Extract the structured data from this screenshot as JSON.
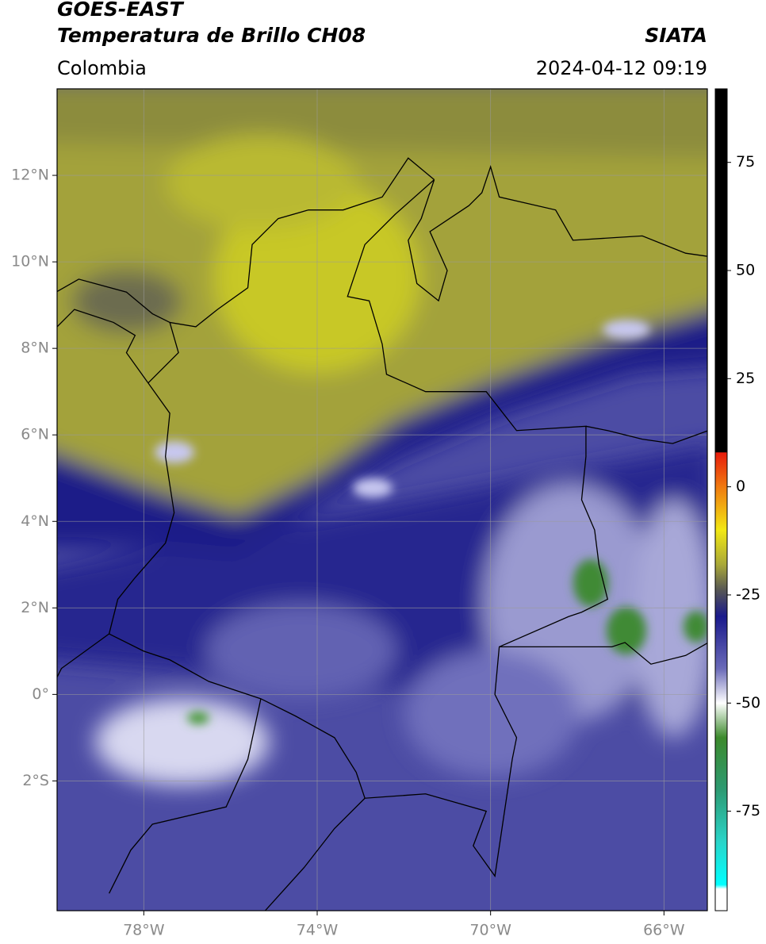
{
  "header": {
    "title": "GOES-EAST",
    "subtitle": "Temperatura de Brillo CH08",
    "source": "SIATA",
    "region": "Colombia",
    "timestamp": "2024-04-12 09:19"
  },
  "chart_data": {
    "type": "map",
    "xlim": [
      -80,
      -65
    ],
    "ylim": [
      -5,
      14
    ],
    "xticks": [
      {
        "value": -78,
        "label": "78°W"
      },
      {
        "value": -74,
        "label": "74°W"
      },
      {
        "value": -70,
        "label": "70°W"
      },
      {
        "value": -66,
        "label": "66°W"
      }
    ],
    "yticks": [
      {
        "value": 12,
        "label": "12°N"
      },
      {
        "value": 10,
        "label": "10°N"
      },
      {
        "value": 8,
        "label": "8°N"
      },
      {
        "value": 6,
        "label": "6°N"
      },
      {
        "value": 4,
        "label": "4°N"
      },
      {
        "value": 2,
        "label": "2°N"
      },
      {
        "value": 0,
        "label": "0°"
      },
      {
        "value": -2,
        "label": "2°S"
      }
    ],
    "grid": true,
    "colorbar": {
      "lim": [
        -98,
        92
      ],
      "ticks": [
        75,
        50,
        25,
        0,
        -25,
        -50,
        -75
      ],
      "colormap": [
        [
          92,
          "#000000"
        ],
        [
          8,
          "#000000"
        ],
        [
          7.9,
          "#e81c0c"
        ],
        [
          0,
          "#f07a10"
        ],
        [
          -10,
          "#f2e814"
        ],
        [
          -18,
          "#a9a838"
        ],
        [
          -24,
          "#555555"
        ],
        [
          -30,
          "#1a1a8c"
        ],
        [
          -42,
          "#6a6ab8"
        ],
        [
          -50,
          "#ffffff"
        ],
        [
          -58,
          "#3c8a2c"
        ],
        [
          -70,
          "#2d9a72"
        ],
        [
          -82,
          "#2ad4c8"
        ],
        [
          -92,
          "#00ffff"
        ],
        [
          -93,
          "#ffffff"
        ],
        [
          -98,
          "#ffffff"
        ]
      ]
    }
  }
}
